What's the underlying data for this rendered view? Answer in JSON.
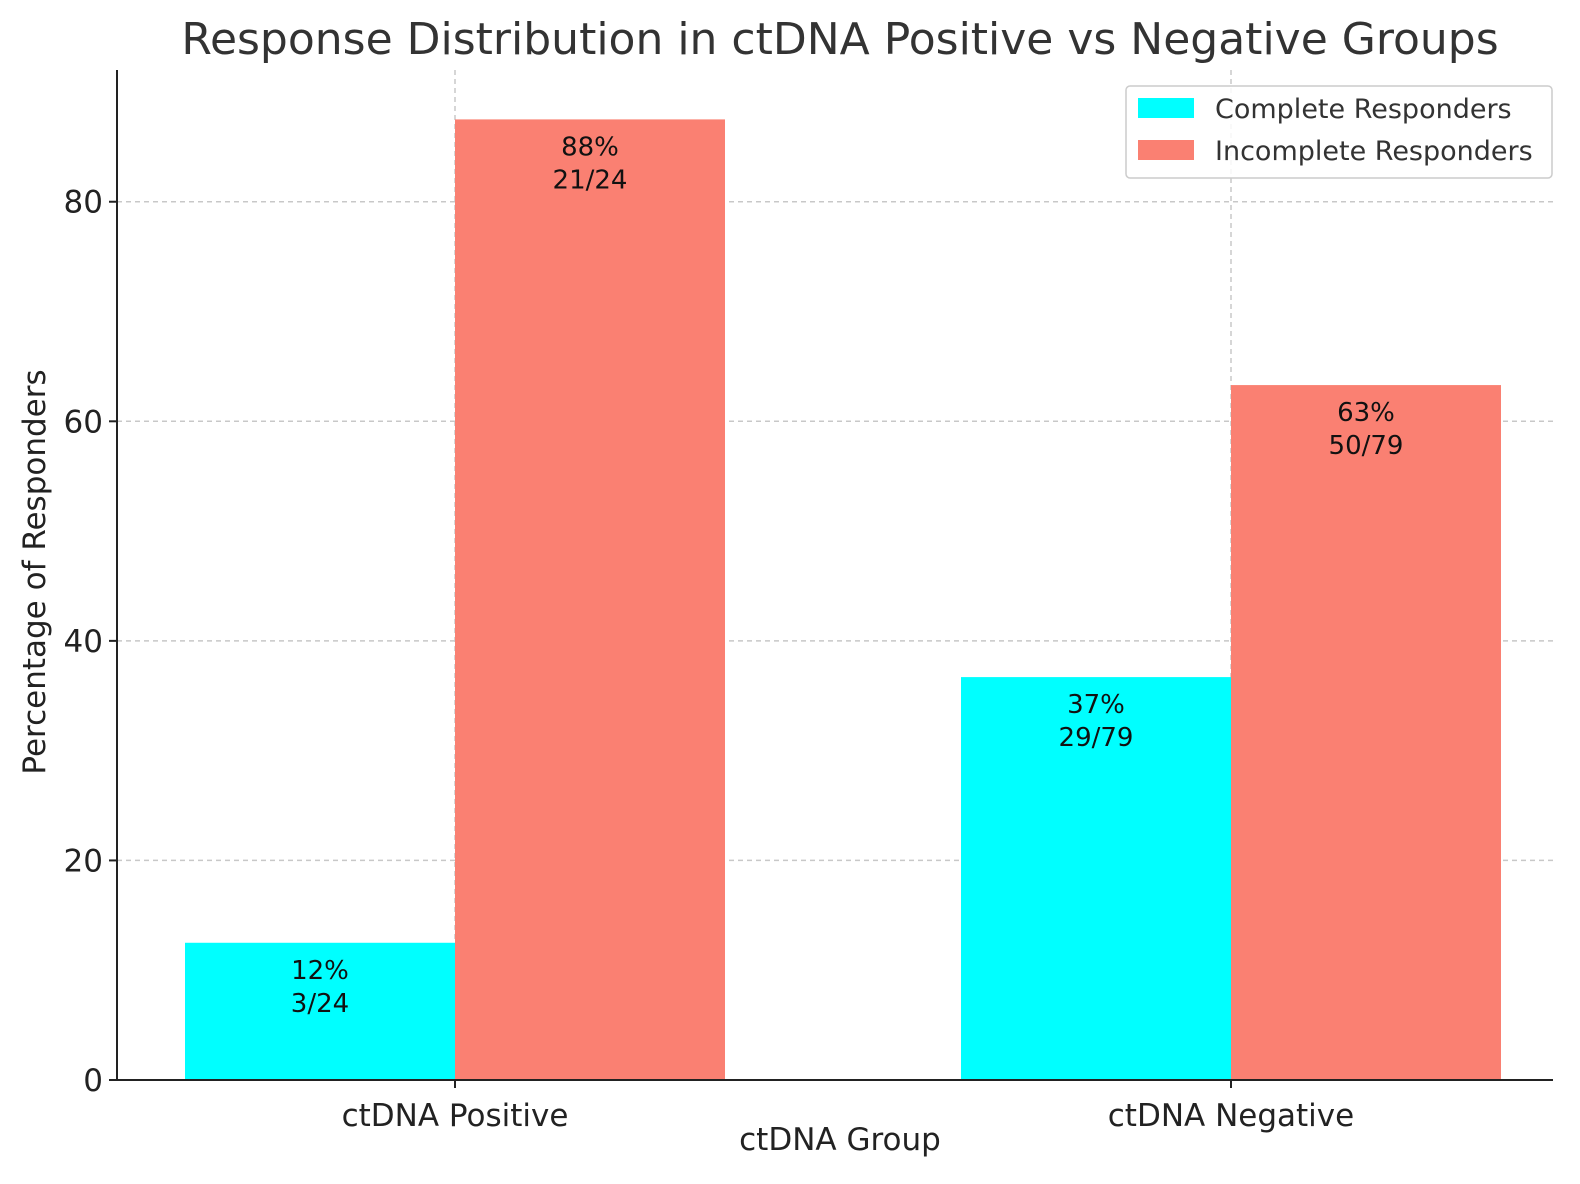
{
  "chart_data": {
    "type": "bar",
    "title": "Response Distribution in ctDNA Positive vs Negative Groups",
    "xlabel": "ctDNA Group",
    "ylabel": "Percentage of Responders",
    "categories": [
      "ctDNA Positive",
      "ctDNA Negative"
    ],
    "ylim": [
      0,
      92
    ],
    "yticks": [
      0,
      20,
      40,
      60,
      80
    ],
    "grid": true,
    "legend_position": "top-right",
    "series": [
      {
        "name": "Complete Responders",
        "color": "#00ffff",
        "values": [
          12.5,
          36.7
        ],
        "labels": [
          [
            "12%",
            "3/24"
          ],
          [
            "37%",
            "29/79"
          ]
        ]
      },
      {
        "name": "Incomplete Responders",
        "color": "#fa8072",
        "values": [
          87.5,
          63.3
        ],
        "labels": [
          [
            "88%",
            "21/24"
          ],
          [
            "63%",
            "50/79"
          ]
        ]
      }
    ]
  }
}
